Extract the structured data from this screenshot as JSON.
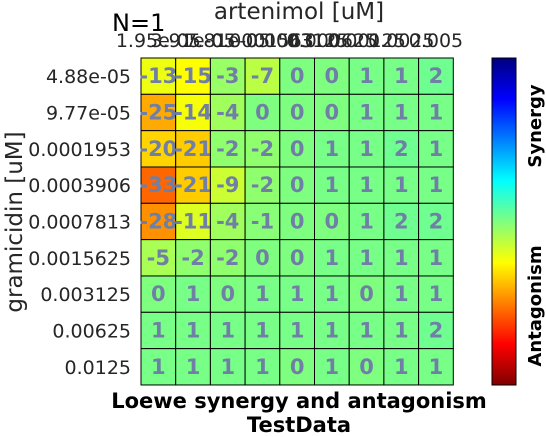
{
  "panel_label": "N=1",
  "titles": [
    "Loewe synergy and antagonism",
    "TestData"
  ],
  "colorbar": {
    "top_label": "Synergy",
    "bottom_label": "Antagonism"
  },
  "chart_data": {
    "type": "heatmap",
    "xlabel": "artenimol [uM]",
    "ylabel": "gramicidin [uM]",
    "x_ticks": [
      "1.95e-05",
      "3.91e-05",
      "7.81e-05",
      "0.0001563",
      "0.0003125",
      "0.000625",
      "0.00125",
      "0.0025",
      "0.005"
    ],
    "y_ticks": [
      "4.88e-05",
      "9.77e-05",
      "0.0001953",
      "0.0003906",
      "0.0007813",
      "0.0015625",
      "0.003125",
      "0.00625",
      "0.0125"
    ],
    "values": [
      [
        -13,
        -15,
        -3,
        -7,
        0,
        0,
        1,
        1,
        2
      ],
      [
        -25,
        -14,
        -4,
        0,
        0,
        0,
        1,
        1,
        1
      ],
      [
        -20,
        -21,
        -2,
        -2,
        0,
        1,
        1,
        2,
        1
      ],
      [
        -33,
        -21,
        -9,
        -2,
        0,
        1,
        1,
        1,
        1
      ],
      [
        -28,
        -11,
        -4,
        -1,
        0,
        0,
        1,
        2,
        2
      ],
      [
        -5,
        -2,
        -2,
        0,
        0,
        1,
        1,
        1,
        1
      ],
      [
        0,
        1,
        0,
        1,
        1,
        1,
        0,
        1,
        1
      ],
      [
        1,
        1,
        1,
        1,
        1,
        1,
        1,
        1,
        2
      ],
      [
        1,
        1,
        1,
        1,
        0,
        1,
        0,
        1,
        1
      ]
    ],
    "colorscale": [
      "#7f0000",
      "#ff0000",
      "#ff7f00",
      "#ffff00",
      "#7fff7f",
      "#00ffff",
      "#007fff",
      "#0000ff",
      "#00007f"
    ],
    "value_range": [
      -60,
      60
    ]
  }
}
